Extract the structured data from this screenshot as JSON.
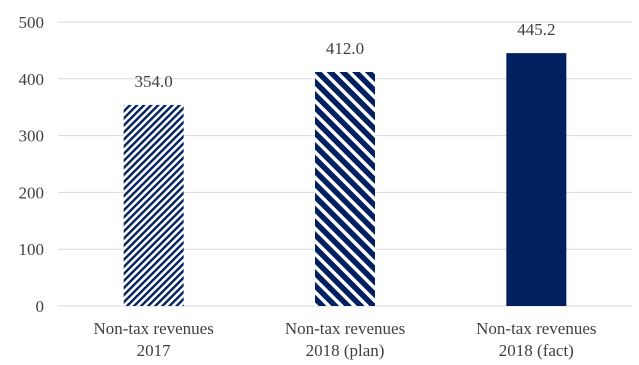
{
  "chart_data": {
    "type": "bar",
    "title": "",
    "xlabel": "",
    "ylabel": "",
    "ylim": [
      0,
      500
    ],
    "yticks": [
      0,
      100,
      200,
      300,
      400,
      500
    ],
    "grid": true,
    "categories": [
      [
        "Non-tax revenues",
        "2017"
      ],
      [
        "Non-tax revenues",
        "2018 (plan)"
      ],
      [
        "Non-tax revenues",
        "2018 (fact)"
      ]
    ],
    "values": [
      354.0,
      412.0,
      445.2
    ],
    "data_labels": [
      "354.0",
      "412.0",
      "445.2"
    ],
    "bar_fills": [
      "fine-diagonal-hatch",
      "wide-diagonal-hatch",
      "solid"
    ],
    "colors": {
      "bar": "#002060",
      "grid": "#d9d9d9",
      "text": "#404040"
    }
  }
}
